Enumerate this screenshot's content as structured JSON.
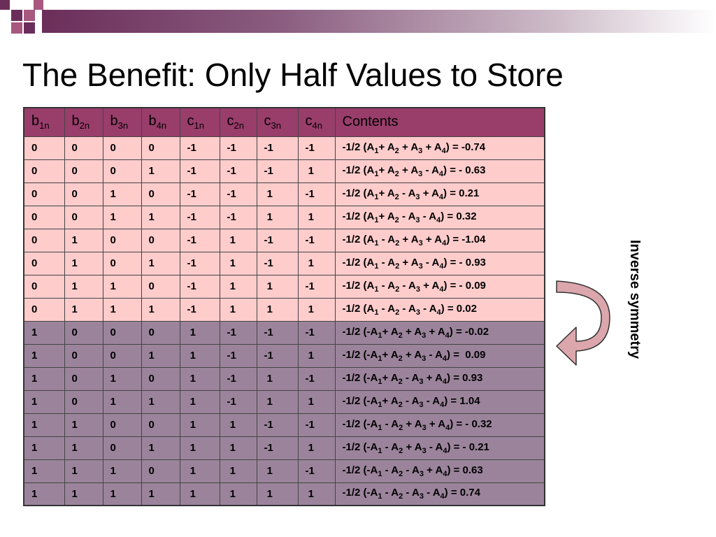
{
  "slide": {
    "title": "The Benefit: Only Half Values to Store",
    "side_label": "Inverse symmetry"
  },
  "colors": {
    "header_bg": "#993d6b",
    "upper_rows_bg": "#ffcccc",
    "lower_rows_bg": "#9b849b",
    "arrow_fill": "#dba6ac"
  },
  "table": {
    "headers": [
      {
        "base": "b",
        "sub": "1n"
      },
      {
        "base": "b",
        "sub": "2n"
      },
      {
        "base": "b",
        "sub": "3n"
      },
      {
        "base": "b",
        "sub": "4n"
      },
      {
        "base": "c",
        "sub": "1n"
      },
      {
        "base": "c",
        "sub": "2n"
      },
      {
        "base": "c",
        "sub": "3n"
      },
      {
        "base": "c",
        "sub": "4n"
      },
      {
        "base": "Contents",
        "sub": ""
      }
    ],
    "rows": [
      {
        "group": "pink",
        "cells": [
          "0",
          "0",
          "0",
          "0",
          "-1",
          "-1",
          "-1",
          "-1"
        ],
        "contents": [
          [
            "-1/2 (A",
            ""
          ],
          [
            "1",
            "s"
          ],
          [
            "+ A",
            ""
          ],
          [
            "2",
            "s"
          ],
          [
            " + A",
            ""
          ],
          [
            "3",
            "s"
          ],
          [
            " + A",
            ""
          ],
          [
            "4",
            "s"
          ],
          [
            ") = -0.74",
            ""
          ]
        ]
      },
      {
        "group": "pink",
        "cells": [
          "0",
          "0",
          "0",
          "1",
          "-1",
          "-1",
          "-1",
          " 1"
        ],
        "contents": [
          [
            "-1/2 (A",
            ""
          ],
          [
            "1",
            "s"
          ],
          [
            "+ A",
            ""
          ],
          [
            "2",
            "s"
          ],
          [
            " + A",
            ""
          ],
          [
            "3",
            "s"
          ],
          [
            " - A",
            ""
          ],
          [
            "4",
            "s"
          ],
          [
            ") = - 0.63",
            ""
          ]
        ]
      },
      {
        "group": "pink",
        "cells": [
          "0",
          "0",
          "1",
          "0",
          "-1",
          "-1",
          " 1",
          "-1"
        ],
        "contents": [
          [
            "-1/2 (A",
            ""
          ],
          [
            "1",
            "s"
          ],
          [
            "+ A",
            ""
          ],
          [
            "2",
            "s"
          ],
          [
            " - A",
            ""
          ],
          [
            "3",
            "s"
          ],
          [
            " + A",
            ""
          ],
          [
            "4",
            "s"
          ],
          [
            ") = 0.21",
            ""
          ]
        ]
      },
      {
        "group": "pink",
        "cells": [
          "0",
          "0",
          "1",
          "1",
          "-1",
          "-1",
          " 1",
          " 1"
        ],
        "contents": [
          [
            "-1/2 (A",
            ""
          ],
          [
            "1",
            "s"
          ],
          [
            "+ A",
            ""
          ],
          [
            "2",
            "s"
          ],
          [
            " - A",
            ""
          ],
          [
            "3",
            "s"
          ],
          [
            " - A",
            ""
          ],
          [
            "4",
            "s"
          ],
          [
            ") = 0.32",
            ""
          ]
        ]
      },
      {
        "group": "pink",
        "cells": [
          "0",
          "1",
          "0",
          "0",
          "-1",
          " 1",
          "-1",
          "-1"
        ],
        "contents": [
          [
            "-1/2 (A",
            ""
          ],
          [
            "1",
            "s"
          ],
          [
            " - A",
            ""
          ],
          [
            "2",
            "s"
          ],
          [
            " + A",
            ""
          ],
          [
            "3",
            "s"
          ],
          [
            " + A",
            ""
          ],
          [
            "4",
            "s"
          ],
          [
            ") = -1.04",
            ""
          ]
        ]
      },
      {
        "group": "pink",
        "cells": [
          "0",
          "1",
          "0",
          "1",
          "-1",
          " 1",
          "-1",
          " 1"
        ],
        "contents": [
          [
            "-1/2 (A",
            ""
          ],
          [
            "1",
            "s"
          ],
          [
            " - A",
            ""
          ],
          [
            "2",
            "s"
          ],
          [
            " + A",
            ""
          ],
          [
            "3",
            "s"
          ],
          [
            " - A",
            ""
          ],
          [
            "4",
            "s"
          ],
          [
            ") = - 0.93",
            ""
          ]
        ]
      },
      {
        "group": "pink",
        "cells": [
          "0",
          "1",
          "1",
          "0",
          "-1",
          " 1",
          " 1",
          "-1"
        ],
        "contents": [
          [
            "-1/2 (A",
            ""
          ],
          [
            "1",
            "s"
          ],
          [
            " - A",
            ""
          ],
          [
            "2",
            "s"
          ],
          [
            " - A",
            ""
          ],
          [
            "3",
            "s"
          ],
          [
            " + A",
            ""
          ],
          [
            "4",
            "s"
          ],
          [
            ") = - 0.09",
            ""
          ]
        ]
      },
      {
        "group": "pink",
        "cells": [
          "0",
          "1",
          "1",
          "1",
          "-1",
          " 1",
          " 1",
          " 1"
        ],
        "contents": [
          [
            "-1/2 (A",
            ""
          ],
          [
            "1",
            "s"
          ],
          [
            " - A",
            ""
          ],
          [
            "2",
            "s"
          ],
          [
            " - A",
            ""
          ],
          [
            "3",
            "s"
          ],
          [
            " - A",
            ""
          ],
          [
            "4",
            "s"
          ],
          [
            ") = 0.02",
            ""
          ]
        ]
      },
      {
        "group": "purple",
        "cells": [
          "1",
          "0",
          "0",
          "0",
          " 1",
          "-1",
          "-1",
          "-1"
        ],
        "contents": [
          [
            "-1/2 (-A",
            ""
          ],
          [
            "1",
            "s"
          ],
          [
            "+ A",
            ""
          ],
          [
            "2",
            "s"
          ],
          [
            " + A",
            ""
          ],
          [
            "3",
            "s"
          ],
          [
            " + A",
            ""
          ],
          [
            "4",
            "s"
          ],
          [
            ") = -0.02",
            ""
          ]
        ]
      },
      {
        "group": "purple",
        "cells": [
          "1",
          "0",
          "0",
          "1",
          " 1",
          "-1",
          "-1",
          " 1"
        ],
        "contents": [
          [
            "-1/2 (-A",
            ""
          ],
          [
            "1",
            "s"
          ],
          [
            "+ A",
            ""
          ],
          [
            "2",
            "s"
          ],
          [
            " + A",
            ""
          ],
          [
            "3",
            "s"
          ],
          [
            " - A",
            ""
          ],
          [
            "4",
            "s"
          ],
          [
            ") =  0.09",
            ""
          ]
        ]
      },
      {
        "group": "purple",
        "cells": [
          "1",
          "0",
          "1",
          "0",
          " 1",
          "-1",
          " 1",
          "-1"
        ],
        "contents": [
          [
            "-1/2 (-A",
            ""
          ],
          [
            "1",
            "s"
          ],
          [
            "+ A",
            ""
          ],
          [
            "2",
            "s"
          ],
          [
            " - A",
            ""
          ],
          [
            "3",
            "s"
          ],
          [
            " + A",
            ""
          ],
          [
            "4",
            "s"
          ],
          [
            ") = 0.93",
            ""
          ]
        ]
      },
      {
        "group": "purple",
        "cells": [
          "1",
          "0",
          "1",
          "1",
          " 1",
          "-1",
          " 1",
          " 1"
        ],
        "contents": [
          [
            "-1/2 (-A",
            ""
          ],
          [
            "1",
            "s"
          ],
          [
            "+ A",
            ""
          ],
          [
            "2",
            "s"
          ],
          [
            " - A",
            ""
          ],
          [
            "3",
            "s"
          ],
          [
            " - A",
            ""
          ],
          [
            "4",
            "s"
          ],
          [
            ") = 1.04",
            ""
          ]
        ]
      },
      {
        "group": "purple",
        "cells": [
          "1",
          "1",
          "0",
          "0",
          " 1",
          " 1",
          "-1",
          "-1"
        ],
        "contents": [
          [
            "-1/2 (-A",
            ""
          ],
          [
            "1",
            "s"
          ],
          [
            " - A",
            ""
          ],
          [
            "2",
            "s"
          ],
          [
            " + A",
            ""
          ],
          [
            "3",
            "s"
          ],
          [
            " + A",
            ""
          ],
          [
            "4",
            "s"
          ],
          [
            ") = - 0.32",
            ""
          ]
        ]
      },
      {
        "group": "purple",
        "cells": [
          "1",
          "1",
          "0",
          "1",
          " 1",
          " 1",
          "-1",
          " 1"
        ],
        "contents": [
          [
            "-1/2 (-A",
            ""
          ],
          [
            "1",
            "s"
          ],
          [
            " - A",
            ""
          ],
          [
            "2",
            "s"
          ],
          [
            " + A",
            ""
          ],
          [
            "3",
            "s"
          ],
          [
            " - A",
            ""
          ],
          [
            "4",
            "s"
          ],
          [
            ") = - 0.21",
            ""
          ]
        ]
      },
      {
        "group": "purple",
        "cells": [
          "1",
          "1",
          "1",
          "0",
          " 1",
          " 1",
          " 1",
          "-1"
        ],
        "contents": [
          [
            "-1/2 (-A",
            ""
          ],
          [
            "1",
            "s"
          ],
          [
            " - A",
            ""
          ],
          [
            "2",
            "s"
          ],
          [
            " - A",
            ""
          ],
          [
            "3",
            "s"
          ],
          [
            " + A",
            ""
          ],
          [
            "4",
            "s"
          ],
          [
            ") = 0.63",
            ""
          ]
        ]
      },
      {
        "group": "purple",
        "cells": [
          "1",
          "1",
          "1",
          "1",
          " 1",
          " 1",
          " 1",
          " 1"
        ],
        "contents": [
          [
            "-1/2 (-A",
            ""
          ],
          [
            "1",
            "s"
          ],
          [
            " - A",
            ""
          ],
          [
            "2",
            "s"
          ],
          [
            " - A",
            ""
          ],
          [
            "3",
            "s"
          ],
          [
            " - A",
            ""
          ],
          [
            "4",
            "s"
          ],
          [
            ") = 0.74",
            ""
          ]
        ]
      }
    ]
  }
}
